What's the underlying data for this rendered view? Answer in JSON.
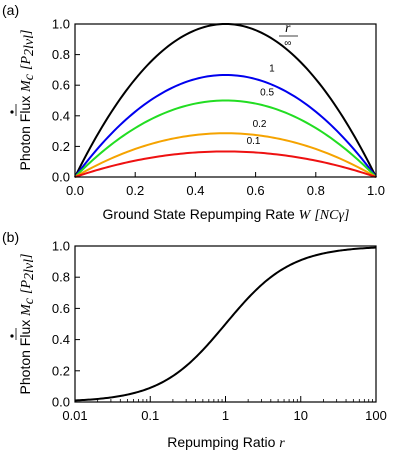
{
  "chart_data": [
    {
      "panel_label": "(a)",
      "type": "line",
      "xlabel": "Ground State Repumping Rate ",
      "xlabel_symbol": "W",
      "xlabel_unit": "[NCγ]",
      "ylabel": "Photon Flux ",
      "ylabel_symbol": "M",
      "ylabel_symbol_sub": "c",
      "ylabel_unit": "[P",
      "ylabel_unit_sub": "2lvl",
      "ylabel_unit_close": "]",
      "xlim": [
        0,
        1
      ],
      "ylim": [
        0,
        1
      ],
      "xticks": [
        "0.0",
        "0.2",
        "0.4",
        "0.6",
        "0.8",
        "1.0"
      ],
      "yticks": [
        "0.0",
        "0.2",
        "0.4",
        "0.6",
        "0.8",
        "1.0"
      ],
      "legend_title": "r",
      "series": [
        {
          "name": "∞",
          "peak": 1.0,
          "color": "#000000"
        },
        {
          "name": "1",
          "peak": 0.667,
          "color": "#0000ee"
        },
        {
          "name": "0.5",
          "peak": 0.5,
          "color": "#22dd22"
        },
        {
          "name": "0.2",
          "peak": 0.286,
          "color": "#f5a300"
        },
        {
          "name": "0.1",
          "peak": 0.167,
          "color": "#ee1111"
        }
      ]
    },
    {
      "panel_label": "(b)",
      "type": "line",
      "xscale": "log",
      "xlabel": "Repumping Ratio ",
      "xlabel_symbol": "r",
      "ylabel": "Photon Flux ",
      "ylabel_symbol": "M",
      "ylabel_symbol_sub": "c",
      "ylabel_unit": "[P",
      "ylabel_unit_sub": "2lvl",
      "ylabel_unit_close": "]",
      "xlim": [
        0.01,
        100
      ],
      "ylim": [
        0,
        1
      ],
      "xticks": [
        "0.01",
        "0.1",
        "1",
        "10",
        "100"
      ],
      "yticks": [
        "0.0",
        "0.2",
        "0.4",
        "0.6",
        "0.8",
        "1.0"
      ],
      "series": [
        {
          "x": [
            0.01,
            0.1,
            0.5,
            1,
            2,
            10,
            100
          ],
          "y": [
            0.0198,
            0.1667,
            0.5,
            0.6667,
            0.8,
            0.9524,
            0.995
          ],
          "color": "#000000"
        }
      ]
    }
  ]
}
